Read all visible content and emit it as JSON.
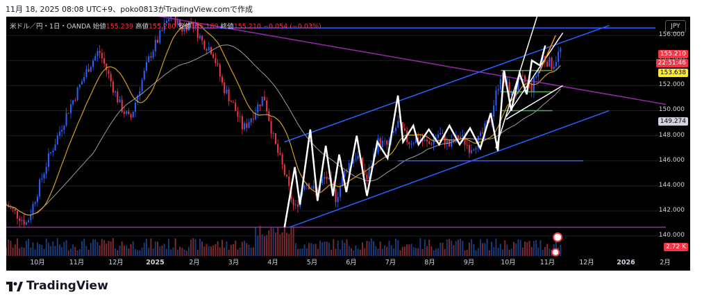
{
  "header": {
    "text": "11月 18, 2025 08:08 UTC+9、poko0813がTradingView.comで作成"
  },
  "legend": {
    "symbol": "米ドル／円・1日・OANDA",
    "open_label": "始値",
    "open": "155.239",
    "high_label": "高値",
    "high": "155.280",
    "low_label": "安値",
    "low": "155.189",
    "close_label": "終値",
    "close": "155.210",
    "change": "−0.054 (−0.03%)"
  },
  "currency": "JPY",
  "price_badges": {
    "last": "155.210",
    "countdown": "22:51:46",
    "yellow": "153.638",
    "gray": "149.274",
    "volume": "2.72 K"
  },
  "brand": {
    "name": "TradingView"
  },
  "colors": {
    "up": "#2962ff",
    "down": "#f23645",
    "ma_fast": "#d4a017",
    "ma_slow": "#9e9e9e",
    "trend": "#2962ff",
    "purple": "#9c27b0",
    "zigzag": "#ffffff",
    "support": "#4caf50",
    "orange": "#ff9800"
  },
  "chart_data": {
    "type": "candlestick",
    "symbol": "USDJPY",
    "timeframe": "1D",
    "y_ticks": [
      156,
      154,
      152,
      150,
      148,
      146,
      144,
      142,
      140
    ],
    "ylim": [
      138.4,
      157.5
    ],
    "x_ticks": [
      "10月",
      "11月",
      "12月",
      "2025",
      "2月",
      "3月",
      "4月",
      "5月",
      "6月",
      "7月",
      "8月",
      "9月",
      "10月",
      "11月",
      "12月",
      "2026",
      "2月"
    ],
    "price_path": [
      [
        0,
        142.5
      ],
      [
        2,
        141.0
      ],
      [
        4,
        146.0
      ],
      [
        6,
        150.0
      ],
      [
        8,
        153.5
      ],
      [
        9,
        154.8
      ],
      [
        11,
        150.5
      ],
      [
        12,
        149.2
      ],
      [
        13,
        152.0
      ],
      [
        14,
        154.5
      ],
      [
        16,
        157.8
      ],
      [
        17,
        156.5
      ],
      [
        18,
        157.2
      ],
      [
        19,
        155.5
      ],
      [
        20,
        154.8
      ],
      [
        21,
        152.0
      ],
      [
        22,
        150.5
      ],
      [
        23,
        148.5
      ],
      [
        24,
        149.8
      ],
      [
        25,
        151.2
      ],
      [
        26,
        147.5
      ],
      [
        27,
        145.0
      ],
      [
        28,
        142.0
      ],
      [
        29,
        144.5
      ],
      [
        30,
        143.5
      ],
      [
        31,
        144.8
      ],
      [
        32,
        143.0
      ],
      [
        33,
        145.5
      ],
      [
        34,
        146.5
      ],
      [
        35,
        144.5
      ],
      [
        36,
        147.5
      ],
      [
        37,
        147.2
      ],
      [
        38,
        149.0
      ],
      [
        39,
        147.5
      ],
      [
        40,
        147.8
      ],
      [
        41,
        147.3
      ],
      [
        42,
        148.2
      ],
      [
        43,
        147.2
      ],
      [
        44,
        148.0
      ],
      [
        45,
        147.0
      ],
      [
        46,
        147.8
      ],
      [
        47,
        149.5
      ],
      [
        48,
        153.0
      ],
      [
        49,
        151.2
      ],
      [
        50,
        152.5
      ],
      [
        51,
        151.8
      ],
      [
        52,
        154.3
      ],
      [
        53,
        153.6
      ],
      [
        54,
        155.2
      ]
    ],
    "moving_averages": [
      {
        "name": "",
        "value": 153.638
      },
      {
        "name": "",
        "value": 149.274
      }
    ],
    "annotations": {
      "trend_channel": "ascending blue channel from April low",
      "horizontal_levels": [
        156.6,
        146.0,
        140.7
      ],
      "support_zones": [
        153.2,
        151.5,
        150.0
      ],
      "descending_purple_line": true,
      "zigzag_pattern": true
    },
    "grid": true,
    "legend_placement": "top-left",
    "volume_last": "2.72 K"
  }
}
